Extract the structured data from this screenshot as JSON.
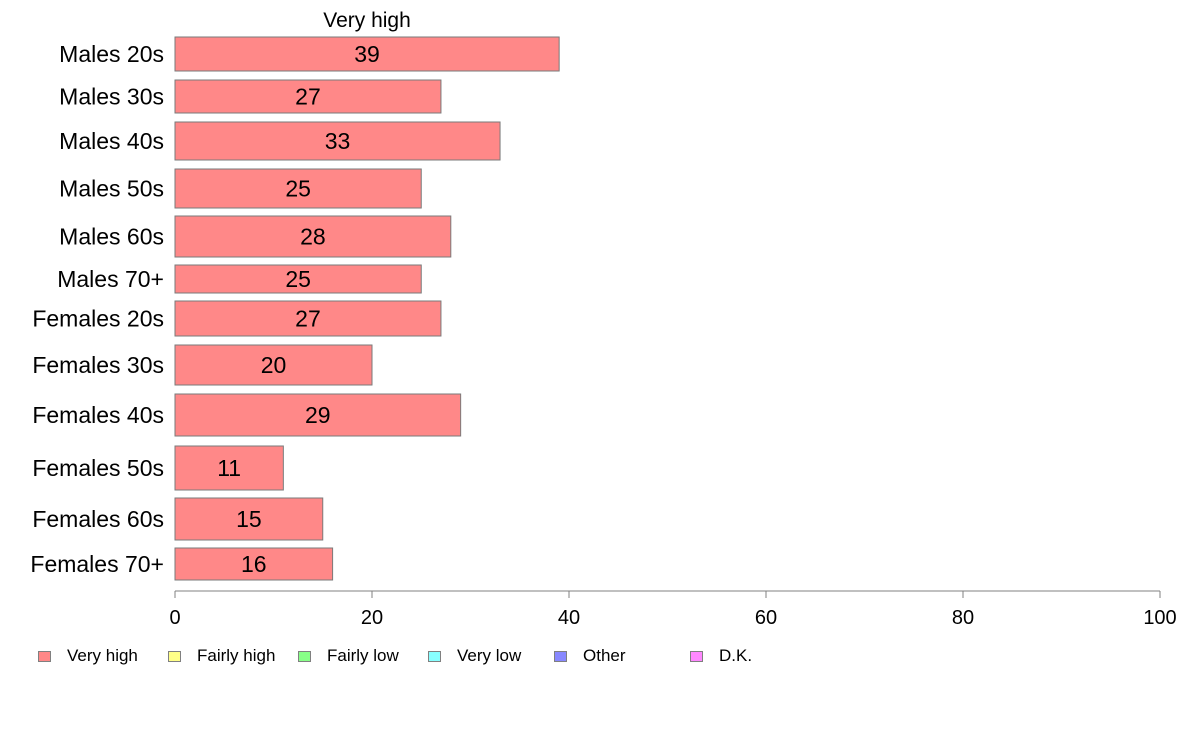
{
  "chart_data": {
    "type": "bar",
    "orientation": "horizontal",
    "stacked": true,
    "panel_title": "Very high",
    "categories": [
      "Males 20s",
      "Males 30s",
      "Males 40s",
      "Males 50s",
      "Males 60s",
      "Males 70+",
      "Females 20s",
      "Females 30s",
      "Females 40s",
      "Females 50s",
      "Females 60s",
      "Females 70+"
    ],
    "series": [
      {
        "name": "Very high",
        "color": "#FF8888",
        "values": [
          39,
          27,
          33,
          25,
          28,
          25,
          27,
          20,
          29,
          11,
          15,
          16
        ],
        "labels": [
          "39",
          "27",
          "33",
          "25",
          "28",
          "25",
          "27",
          "20",
          "29",
          "11",
          "15",
          "16"
        ]
      }
    ],
    "xlim": [
      0,
      100
    ],
    "xticks": [
      0,
      20,
      40,
      60,
      80,
      100
    ],
    "xtick_labels": [
      "0",
      "20",
      "40",
      "60",
      "80",
      "100"
    ],
    "grid": false,
    "legend_position": "bottom-left"
  },
  "legend": [
    {
      "label": "Very high",
      "color": "#FF8888"
    },
    {
      "label": "Fairly high",
      "color": "#FFFF88"
    },
    {
      "label": "Fairly low",
      "color": "#88FF88"
    },
    {
      "label": "Very low",
      "color": "#88FFFF"
    },
    {
      "label": "Other",
      "color": "#8888FF"
    },
    {
      "label": "D.K.",
      "color": "#FF88FF"
    }
  ]
}
